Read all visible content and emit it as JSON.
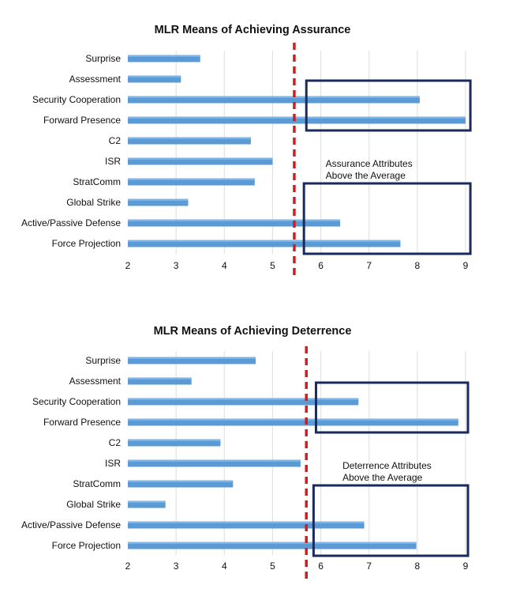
{
  "chart_data": [
    {
      "type": "bar",
      "orientation": "horizontal",
      "title": "MLR Means of Achieving Assurance",
      "categories": [
        "Surprise",
        "Assessment",
        "Security Cooperation",
        "Forward Presence",
        "C2",
        "ISR",
        "StratComm",
        "Global Strike",
        "Active/Passive Defense",
        "Force Projection"
      ],
      "values": [
        3.5,
        3.1,
        8.05,
        9.0,
        4.55,
        5.0,
        4.63,
        3.25,
        6.4,
        7.65
      ],
      "xlim": [
        2,
        9
      ],
      "xticks": [
        2,
        3,
        4,
        5,
        6,
        7,
        8,
        9
      ],
      "grid": true,
      "average": 5.45,
      "highlights": [
        {
          "from_category": "Security Cooperation",
          "to_category": "Forward Presence",
          "x_from": 5.7,
          "x_to": 9.1
        },
        {
          "from_category": "Global Strike",
          "to_category": "Force Projection",
          "x_from": 5.65,
          "x_to": 9.1
        }
      ],
      "annotation": {
        "line1": "Assurance Attributes",
        "line2": "Above the Average",
        "x": 6.1,
        "between": [
          "ISR",
          "StratComm"
        ]
      }
    },
    {
      "type": "bar",
      "orientation": "horizontal",
      "title": "MLR Means of Achieving Deterrence",
      "categories": [
        "Surprise",
        "Assessment",
        "Security Cooperation",
        "Forward Presence",
        "C2",
        "ISR",
        "StratComm",
        "Global Strike",
        "Active/Passive Defense",
        "Force Projection"
      ],
      "values": [
        4.65,
        3.32,
        6.78,
        8.85,
        3.92,
        5.58,
        4.18,
        2.78,
        6.9,
        7.98
      ],
      "xlim": [
        2,
        9
      ],
      "xticks": [
        2,
        3,
        4,
        5,
        6,
        7,
        8,
        9
      ],
      "grid": true,
      "average": 5.7,
      "highlights": [
        {
          "from_category": "Security Cooperation",
          "to_category": "Forward Presence",
          "x_from": 5.9,
          "x_to": 9.05
        },
        {
          "from_category": "Global Strike",
          "to_category": "Force Projection",
          "x_from": 5.85,
          "x_to": 9.05
        }
      ],
      "annotation": {
        "line1": "Deterrence Attributes",
        "line2": "Above the Average",
        "x": 6.45,
        "between": [
          "ISR",
          "StratComm"
        ]
      }
    }
  ],
  "colors": {
    "bar": "#5b9bd5",
    "bar_highlight": "#8fbde6",
    "grid": "#e3e3e3",
    "average_line": "#cc1f1f",
    "box": "#1b2a5e",
    "text": "#111111"
  }
}
